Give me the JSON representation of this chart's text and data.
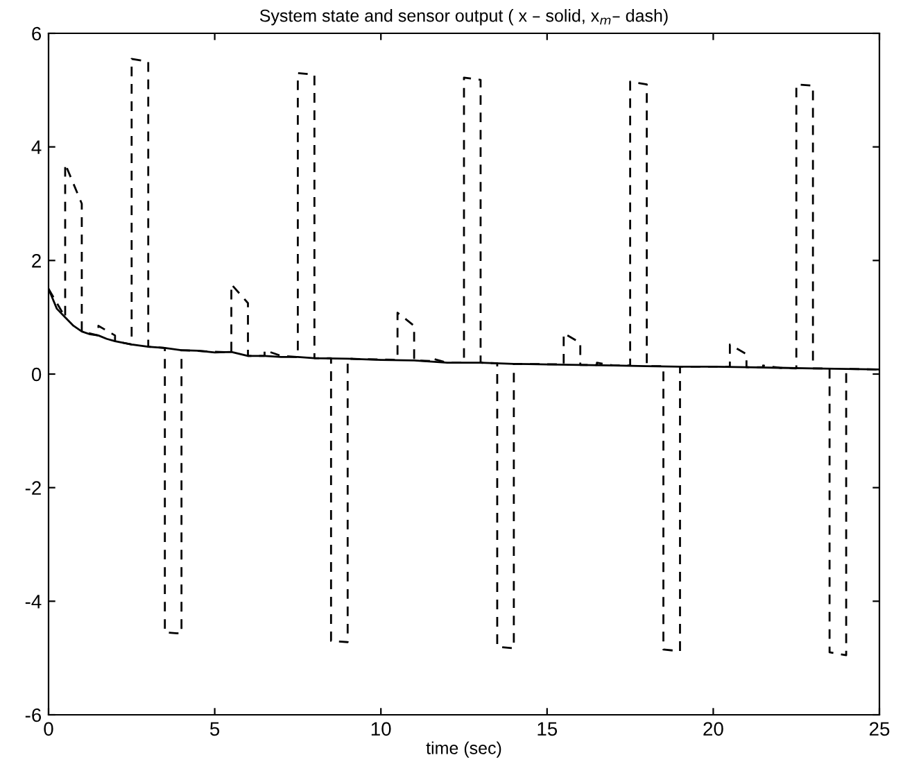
{
  "chart_data": {
    "type": "line",
    "title": "System state and sensor output ( x – solid, x$_{m}$– dash)",
    "xlabel": "time (sec)",
    "xlim": [
      0,
      25
    ],
    "ylim": [
      -6,
      6
    ],
    "xticks": [
      0,
      5,
      10,
      15,
      20,
      25
    ],
    "yticks": [
      -6,
      -4,
      -2,
      0,
      2,
      4,
      6
    ],
    "grid": false,
    "legend": false,
    "marker": "none",
    "series": [
      {
        "color": "#000000",
        "line_style": "solid",
        "x": [
          0,
          0.25,
          0.5,
          0.75,
          1,
          1.25,
          1.5,
          1.75,
          2,
          2.5,
          3,
          3.5,
          4,
          4.5,
          5,
          5.5,
          6,
          6.5,
          7,
          7.5,
          8,
          9,
          10,
          11,
          12,
          13,
          14,
          15,
          16,
          17,
          18,
          19,
          20,
          21,
          22,
          23,
          24,
          25
        ],
        "values": [
          1.5,
          1.15,
          1.0,
          0.85,
          0.75,
          0.7,
          0.68,
          0.62,
          0.58,
          0.52,
          0.48,
          0.46,
          0.42,
          0.41,
          0.38,
          0.39,
          0.32,
          0.32,
          0.3,
          0.3,
          0.28,
          0.27,
          0.25,
          0.24,
          0.2,
          0.2,
          0.18,
          0.17,
          0.16,
          0.15,
          0.14,
          0.13,
          0.13,
          0.12,
          0.11,
          0.1,
          0.09,
          0.08
        ]
      },
      {
        "color": "#000000",
        "line_style": "dashed",
        "x": [
          0,
          0.5,
          0.5,
          1.0,
          1.0,
          1.5,
          1.5,
          2.0,
          2.0,
          2.5,
          2.5,
          3.0,
          3.0,
          3.5,
          3.5,
          4.0,
          4.0,
          5.5,
          5.5,
          6.0,
          6.0,
          6.5,
          6.5,
          7.0,
          7.5,
          7.5,
          8.0,
          8.0,
          8.5,
          8.5,
          9.0,
          9.0,
          10.5,
          10.5,
          11,
          11,
          11.5,
          11.5,
          12,
          12.5,
          12.5,
          13,
          13,
          13.5,
          13.5,
          14,
          14,
          15.5,
          15.5,
          16,
          16,
          16.5,
          16.5,
          17,
          17.5,
          17.5,
          18,
          18,
          18.5,
          18.5,
          19,
          19,
          20.5,
          20.5,
          21,
          21,
          21.5,
          21.5,
          22,
          22.5,
          22.5,
          23,
          23,
          23.5,
          23.5,
          24,
          24,
          25
        ],
        "values": [
          1.5,
          1.0,
          3.7,
          3.0,
          0.75,
          0.68,
          0.85,
          0.68,
          0.58,
          0.52,
          5.55,
          5.5,
          0.48,
          0.46,
          -4.55,
          -4.57,
          0.42,
          0.38,
          1.58,
          1.25,
          0.32,
          0.32,
          0.42,
          0.32,
          0.3,
          5.3,
          5.27,
          0.28,
          0.28,
          -4.7,
          -4.72,
          0.27,
          0.25,
          1.08,
          0.85,
          0.24,
          0.23,
          0.28,
          0.2,
          0.2,
          5.22,
          5.18,
          0.2,
          0.19,
          -4.8,
          -4.83,
          0.18,
          0.17,
          0.72,
          0.55,
          0.16,
          0.16,
          0.2,
          0.15,
          0.15,
          5.15,
          5.1,
          0.14,
          0.14,
          -4.85,
          -4.88,
          0.13,
          0.13,
          0.52,
          0.35,
          0.12,
          0.12,
          0.15,
          0.11,
          0.1,
          5.1,
          5.08,
          0.1,
          0.1,
          -4.9,
          -4.95,
          0.09,
          0.08
        ]
      }
    ]
  }
}
